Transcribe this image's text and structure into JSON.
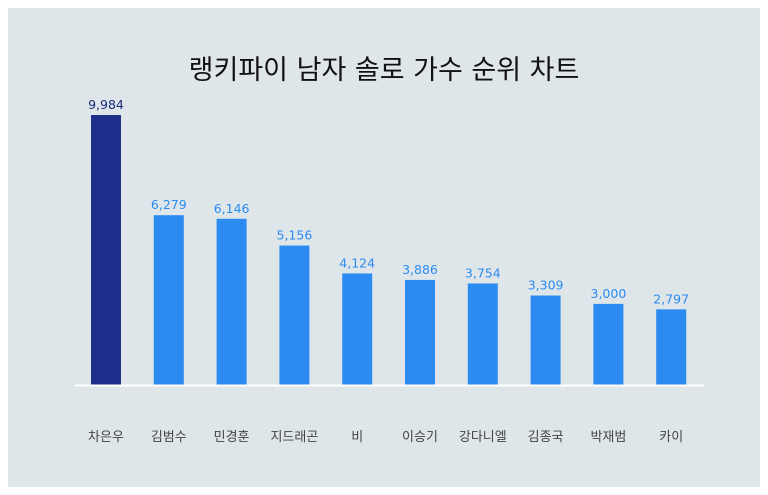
{
  "chart_data": {
    "type": "bar",
    "title": "랭키파이 남자 솔로 가수 순위 차트",
    "categories": [
      "차은우",
      "김범수",
      "민경훈",
      "지드래곤",
      "비",
      "이승기",
      "강다니엘",
      "김종국",
      "박재범",
      "카이"
    ],
    "values": [
      9984,
      6279,
      6146,
      5156,
      4124,
      3886,
      3754,
      3309,
      3000,
      2797
    ],
    "value_labels": [
      "9,984",
      "6,279",
      "6,146",
      "5,156",
      "4,124",
      "3,886",
      "3,754",
      "3,309",
      "3,000",
      "2,797"
    ],
    "xlabel": "",
    "ylabel": "",
    "ylim": [
      0,
      10000
    ],
    "grid": false,
    "legend": "none",
    "colors": {
      "highlight": "#1f2d8c",
      "bar": "#2b8bf0",
      "label": "#2b8bf0",
      "highlight_label": "#1b2a7a",
      "axis": "#ffffff",
      "category": "#444444"
    }
  }
}
